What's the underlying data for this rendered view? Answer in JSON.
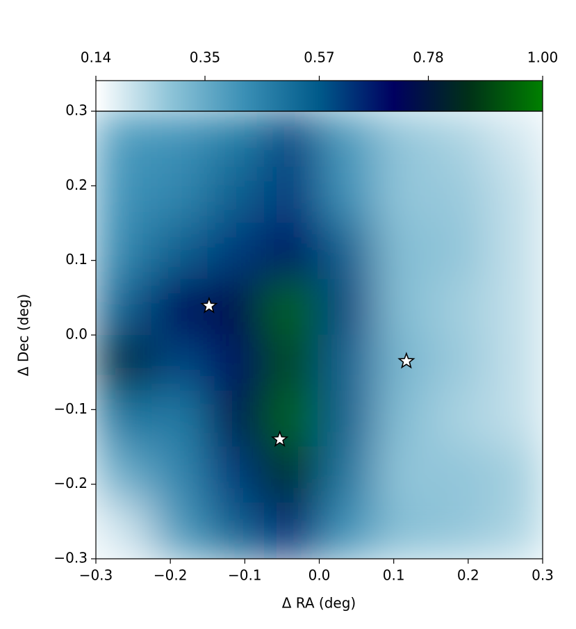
{
  "chart_data": {
    "type": "heatmap",
    "xlabel": "Δ RA (deg)",
    "ylabel": "Δ Dec (deg)",
    "xlim": [
      -0.3,
      0.3
    ],
    "ylim": [
      -0.3,
      0.3
    ],
    "xticks": [
      {
        "value": -0.3,
        "label": "−0.3"
      },
      {
        "value": -0.2,
        "label": "−0.2"
      },
      {
        "value": -0.1,
        "label": "−0.1"
      },
      {
        "value": 0,
        "label": "0.0"
      },
      0.1,
      0.2,
      0.3
    ],
    "yticks": [
      {
        "value": -0.3,
        "label": "−0.3"
      },
      {
        "value": -0.2,
        "label": "−0.2"
      },
      {
        "value": -0.1,
        "label": "−0.1"
      },
      {
        "value": 0,
        "label": "0.0"
      },
      0.1,
      0.2,
      0.3
    ],
    "clim": [
      0.14,
      1
    ],
    "cticks": [
      0.14,
      0.35,
      0.57,
      0.78,
      {
        "value": 1,
        "label": "1.00"
      }
    ],
    "colormap": [
      "#ffffff",
      "#8ec4d8",
      "#3a8fb5",
      "#005a8a",
      "#000060",
      "#003018",
      "#008000"
    ],
    "z": [
      [
        0.4,
        0.42,
        0.48,
        0.6,
        0.4,
        0.28,
        0.25,
        0.2
      ],
      [
        0.42,
        0.45,
        0.55,
        0.62,
        0.42,
        0.28,
        0.27,
        0.22
      ],
      [
        0.45,
        0.55,
        0.62,
        0.7,
        0.55,
        0.3,
        0.28,
        0.22
      ],
      [
        0.55,
        0.72,
        0.75,
        0.95,
        0.6,
        0.3,
        0.26,
        0.22
      ],
      [
        0.8,
        0.6,
        0.7,
        0.9,
        0.55,
        0.32,
        0.27,
        0.22
      ],
      [
        0.5,
        0.48,
        0.75,
        0.95,
        0.55,
        0.3,
        0.25,
        0.22
      ],
      [
        0.35,
        0.45,
        0.62,
        0.85,
        0.5,
        0.28,
        0.28,
        0.26
      ],
      [
        0.2,
        0.4,
        0.55,
        0.65,
        0.42,
        0.3,
        0.28,
        0.25
      ]
    ],
    "markers": {
      "x": [
        -0.148,
        -0.053,
        0.117
      ],
      "y": [
        0.039,
        -0.14,
        -0.035
      ],
      "color": "#ffffff"
    }
  }
}
